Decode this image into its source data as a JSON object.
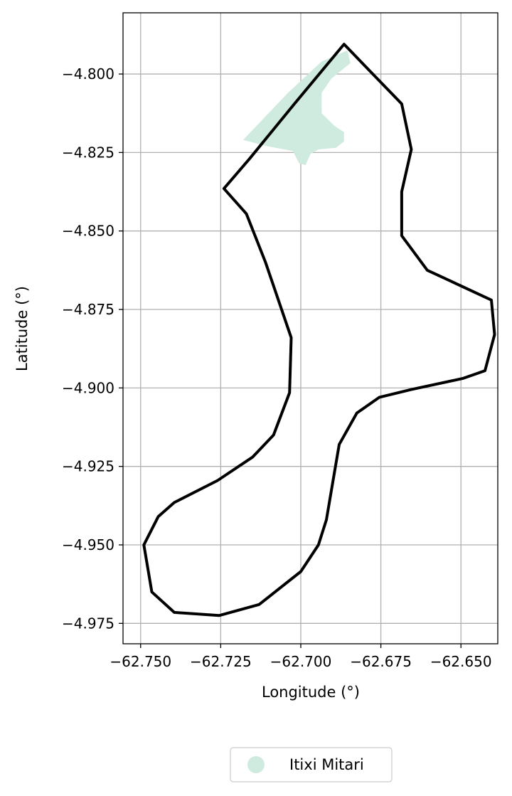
{
  "chart_data": {
    "type": "map",
    "xlabel": "Longitude (°)",
    "ylabel": "Latitude (°)",
    "xlim": [
      -62.7555,
      -62.6385
    ],
    "ylim": [
      -4.9815,
      -4.7805
    ],
    "xticks": [
      -62.75,
      -62.725,
      -62.7,
      -62.675,
      -62.65
    ],
    "xtick_labels": [
      "−62.750",
      "−62.725",
      "−62.700",
      "−62.675",
      "−62.650"
    ],
    "yticks": [
      -4.8,
      -4.825,
      -4.85,
      -4.875,
      -4.9,
      -4.925,
      -4.95,
      -4.975
    ],
    "ytick_labels": [
      "−4.800",
      "−4.825",
      "−4.850",
      "−4.875",
      "−4.900",
      "−4.925",
      "−4.950",
      "−4.975"
    ],
    "grid": true,
    "legend_position": "bottom-center-below-axes",
    "colors": {
      "boundary": "#000000",
      "area_fill": "#cfeadf",
      "grid": "#b0b0b0"
    },
    "boundary": [
      [
        -62.6865,
        -4.7905
      ],
      [
        -62.6775,
        -4.8
      ],
      [
        -62.6685,
        -4.8095
      ],
      [
        -62.6655,
        -4.824
      ],
      [
        -62.6685,
        -4.8375
      ],
      [
        -62.6685,
        -4.8515
      ],
      [
        -62.6605,
        -4.8625
      ],
      [
        -62.6405,
        -4.872
      ],
      [
        -62.6395,
        -4.883
      ],
      [
        -62.6425,
        -4.8945
      ],
      [
        -62.6495,
        -4.897
      ],
      [
        -62.6655,
        -4.9005
      ],
      [
        -62.6755,
        -4.903
      ],
      [
        -62.6825,
        -4.908
      ],
      [
        -62.688,
        -4.918
      ],
      [
        -62.692,
        -4.942
      ],
      [
        -62.6945,
        -4.95
      ],
      [
        -62.7,
        -4.9585
      ],
      [
        -62.713,
        -4.969
      ],
      [
        -62.7255,
        -4.9725
      ],
      [
        -62.7395,
        -4.9715
      ],
      [
        -62.7465,
        -4.965
      ],
      [
        -62.749,
        -4.95
      ],
      [
        -62.7445,
        -4.941
      ],
      [
        -62.7395,
        -4.9365
      ],
      [
        -62.726,
        -4.9295
      ],
      [
        -62.715,
        -4.922
      ],
      [
        -62.7085,
        -4.915
      ],
      [
        -62.7035,
        -4.9015
      ],
      [
        -62.703,
        -4.884
      ],
      [
        -62.711,
        -4.86
      ],
      [
        -62.717,
        -4.8445
      ],
      [
        -62.724,
        -4.8365
      ],
      [
        -62.716,
        -4.827
      ],
      [
        -62.702,
        -4.8095
      ],
      [
        -62.6865,
        -4.7905
      ]
    ],
    "areas": [
      {
        "name": "Itixi Mitari",
        "polygon": [
          [
            -62.6855,
            -4.7925
          ],
          [
            -62.6845,
            -4.7965
          ],
          [
            -62.6905,
            -4.8015
          ],
          [
            -62.6935,
            -4.806
          ],
          [
            -62.6935,
            -4.8125
          ],
          [
            -62.6895,
            -4.8165
          ],
          [
            -62.6865,
            -4.8185
          ],
          [
            -62.6865,
            -4.8215
          ],
          [
            -62.689,
            -4.8235
          ],
          [
            -62.6945,
            -4.824
          ],
          [
            -62.697,
            -4.8255
          ],
          [
            -62.6985,
            -4.829
          ],
          [
            -62.7005,
            -4.8285
          ],
          [
            -62.7025,
            -4.8245
          ],
          [
            -62.7105,
            -4.823
          ],
          [
            -62.718,
            -4.821
          ],
          [
            -62.704,
            -4.806
          ],
          [
            -62.6935,
            -4.796
          ],
          [
            -62.6855,
            -4.7925
          ]
        ]
      }
    ],
    "legend": [
      "Itixi Mitari"
    ]
  }
}
